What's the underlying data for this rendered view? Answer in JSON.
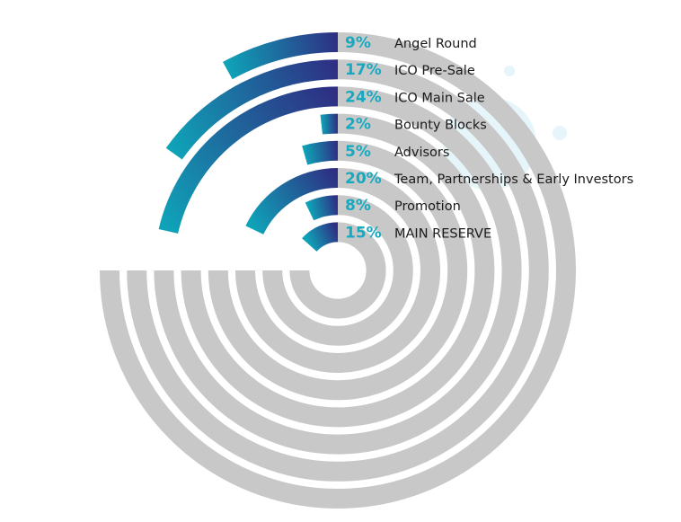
{
  "chart_data": {
    "type": "radial-bar",
    "title": "",
    "series": [
      {
        "name": "Angel Round",
        "value": 9,
        "value_label": "9%"
      },
      {
        "name": "ICO Pre-Sale",
        "value": 17,
        "value_label": "17%"
      },
      {
        "name": "ICO Main Sale",
        "value": 24,
        "value_label": "24%"
      },
      {
        "name": "Bounty Blocks",
        "value": 2,
        "value_label": "2%"
      },
      {
        "name": "Advisors",
        "value": 5,
        "value_label": "5%"
      },
      {
        "name": "Team, Partnerships & Early Investors",
        "value": 20,
        "value_label": "20%"
      },
      {
        "name": "Promotion",
        "value": 8,
        "value_label": "8%"
      },
      {
        "name": "MAIN RESERVE",
        "value": 15,
        "value_label": "15%"
      }
    ],
    "colors": {
      "track": "#c8c8c8",
      "gradient_start": "#0fa3b8",
      "gradient_end": "#2e2f83",
      "percent_text": "#17a9c0",
      "label_text": "#1a1a1a",
      "bubble": "#e3f4f8"
    }
  }
}
